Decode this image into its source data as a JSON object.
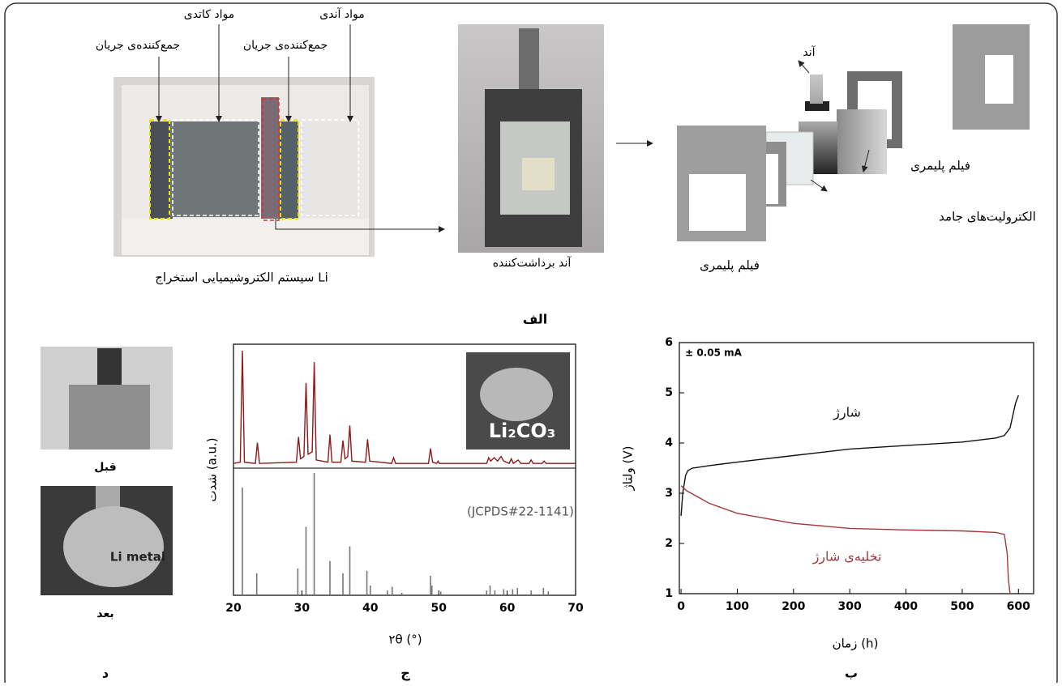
{
  "figure": {
    "panel_a": {
      "label": "الف",
      "cell": {
        "labels": [
          "جمع‌کننده‌ی جریان",
          "مواد کاتدی",
          "جمع‌کننده‌ی جریان",
          "مواد آندی"
        ],
        "caption": "سیستم الکتروشیمیایی استخراج Li"
      },
      "anode": {
        "caption": "آند برداشت‌کننده"
      },
      "assembly": {
        "labels": [
          "آند",
          "فیلم پلیمری",
          "الکترولیت‌های جامد",
          "فیلم پلیمری"
        ]
      }
    },
    "panel_d": {
      "label": "د",
      "before": "قبل",
      "after": "بعد",
      "inset": "Li metal"
    }
  },
  "chart_data": [
    {
      "type": "line",
      "label": "ب",
      "annotation": "± 0.05 mA",
      "xlabel": "زمان (h)",
      "ylabel": "ولتاژ (V)",
      "xlim": [
        -3,
        627
      ],
      "xticks": [
        0,
        100,
        200,
        300,
        400,
        500,
        600
      ],
      "ylim": [
        1,
        6
      ],
      "yticks": [
        1,
        2,
        3,
        4,
        5,
        6
      ],
      "series": [
        {
          "name": "شارژ",
          "color": "#111111",
          "x": [
            0,
            3,
            8,
            12,
            20,
            50,
            100,
            200,
            300,
            400,
            500,
            560,
            575,
            585,
            595,
            600
          ],
          "values": [
            2.55,
            3.0,
            3.35,
            3.45,
            3.5,
            3.55,
            3.62,
            3.75,
            3.88,
            3.95,
            4.02,
            4.1,
            4.15,
            4.3,
            4.8,
            4.95
          ]
        },
        {
          "name": "تخلیه‌ی شارژ",
          "color": "#a33a3a",
          "x": [
            0,
            10,
            50,
            100,
            200,
            300,
            400,
            500,
            560,
            575,
            580,
            582,
            585
          ],
          "values": [
            3.15,
            3.05,
            2.8,
            2.6,
            2.4,
            2.3,
            2.27,
            2.25,
            2.22,
            2.18,
            1.8,
            1.3,
            1.0
          ]
        }
      ]
    },
    {
      "type": "line",
      "label": "ج",
      "xlabel": "۲θ (°)",
      "ylabel": "شدت (a.u.)",
      "inset_label": "Li₂CO₃",
      "xlim": [
        20,
        70
      ],
      "xticks": [
        20,
        30,
        40,
        50,
        60,
        70
      ],
      "ylim": [
        0,
        100
      ],
      "y2lim": [
        0,
        100
      ],
      "series": [
        {
          "color": "#8b1a1a",
          "x": [
            20,
            21,
            21.3,
            21.6,
            23.2,
            23.5,
            23.8,
            29.2,
            29.5,
            29.8,
            30.3,
            30.6,
            30.9,
            31.5,
            31.8,
            32.1,
            33.8,
            34.1,
            34.4,
            35.7,
            36.0,
            36.3,
            36.7,
            37.0,
            37.3,
            39.3,
            39.6,
            39.9,
            43.1,
            43.4,
            43.7,
            48.5,
            48.8,
            49.1,
            49.7,
            49.9,
            50.1,
            57.0,
            57.3,
            57.6,
            58.1,
            58.6,
            59.1,
            59.5,
            60.3,
            60.6,
            60.9,
            61.6,
            62.0,
            63.2,
            63.5,
            63.8,
            65.1,
            65.4,
            65.7,
            70
          ],
          "values": [
            2,
            3,
            100,
            3,
            2,
            20,
            2,
            3,
            25,
            6,
            8,
            72,
            10,
            12,
            90,
            5,
            3,
            27,
            3,
            3,
            22,
            6,
            8,
            35,
            4,
            3,
            23,
            4,
            2,
            7,
            2,
            2,
            15,
            3,
            2,
            4,
            2,
            2,
            7,
            4,
            7,
            4,
            8,
            4,
            2,
            6,
            2,
            5,
            2,
            2,
            5,
            2,
            2,
            4,
            2,
            2
          ]
        },
        {
          "name": "Li₂CO₃",
          "annotation": "(JCPDS#22-1141)",
          "color": "#777777",
          "type": "stem",
          "axis": "y2",
          "x": [
            21.3,
            23.4,
            29.4,
            30.6,
            31.8,
            34.1,
            36.0,
            37.0,
            39.5,
            40.0,
            42.5,
            43.2,
            44.6,
            48.8,
            49.0,
            50.3,
            57.0,
            57.5,
            58.2,
            59.5,
            60.8,
            61.5,
            63.5,
            65.3,
            66.0
          ],
          "values": [
            88,
            18,
            22,
            56,
            100,
            28,
            18,
            40,
            20,
            8,
            4,
            7,
            2,
            16,
            8,
            3,
            4,
            8,
            4,
            5,
            5,
            6,
            4,
            6,
            3
          ]
        }
      ]
    }
  ]
}
